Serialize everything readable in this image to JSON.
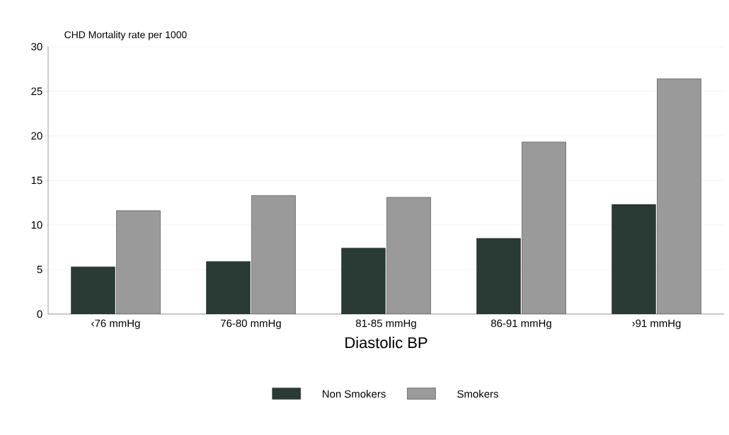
{
  "chart_data": {
    "type": "bar",
    "ylabel": "CHD Mortality rate per 1000",
    "xlabel": "Diastolic BP",
    "categories": [
      "‹76 mmHg",
      "76-80 mmHg",
      "81-85 mmHg",
      "86-91 mmHg",
      "›91 mmHg"
    ],
    "series": [
      {
        "name": "Non Smokers",
        "color": "#2a3a35",
        "values": [
          5.3,
          5.9,
          7.4,
          8.5,
          12.3
        ]
      },
      {
        "name": "Smokers",
        "color": "#9a9a9a",
        "values": [
          11.6,
          13.3,
          13.1,
          19.3,
          26.4
        ]
      }
    ],
    "ylim": [
      0,
      30
    ],
    "yticks": [
      0,
      5,
      10,
      15,
      20,
      25,
      30
    ],
    "grid": "y",
    "legend": "bottom"
  }
}
